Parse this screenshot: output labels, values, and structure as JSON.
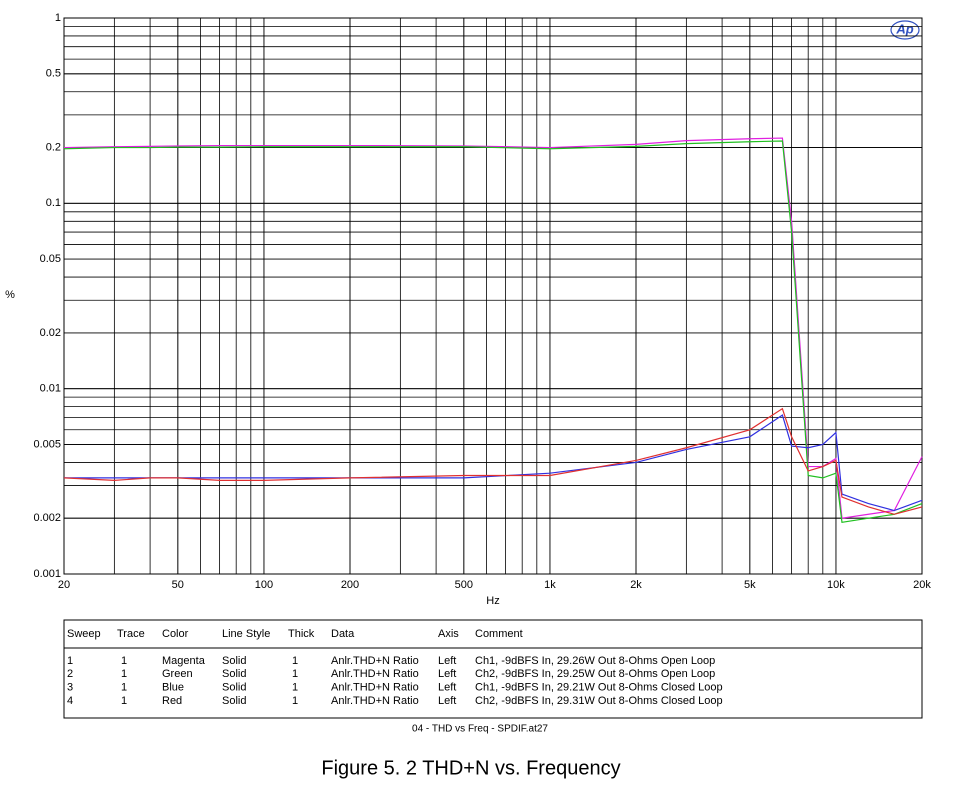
{
  "chart_data": {
    "type": "line",
    "logo": "Ap",
    "xlabel": "Hz",
    "ylabel": "%",
    "xscale": "log",
    "yscale": "log",
    "grid": true,
    "xlim": [
      20,
      20000
    ],
    "xticks": [
      20,
      50,
      100,
      200,
      500,
      {
        "value": 1000,
        "label": "1k"
      },
      {
        "value": 2000,
        "label": "2k"
      },
      {
        "value": 5000,
        "label": "5k"
      },
      {
        "value": 10000,
        "label": "10k"
      },
      {
        "value": 20000,
        "label": "20k"
      }
    ],
    "ylim": [
      0.001,
      1
    ],
    "yticks": [
      1,
      0.5,
      0.2,
      0.1,
      0.05,
      0.02,
      0.01,
      0.005,
      0.002,
      0.001
    ],
    "x": [
      20,
      30,
      40,
      50,
      70,
      100,
      200,
      500,
      1000,
      2000,
      3000,
      5000,
      6500,
      7000,
      8000,
      9000,
      10000,
      10500,
      13000,
      16000,
      20000
    ],
    "series": [
      {
        "name": "Magenta",
        "color": "#e020e0",
        "values": [
          0.2,
          0.202,
          0.203,
          0.204,
          0.205,
          0.205,
          0.205,
          0.204,
          0.2,
          0.208,
          0.218,
          0.223,
          0.225,
          0.08,
          0.0038,
          0.0038,
          0.0042,
          0.002,
          0.0021,
          0.0022,
          0.0043
        ]
      },
      {
        "name": "Green",
        "color": "#20c020",
        "values": [
          0.197,
          0.2,
          0.2,
          0.201,
          0.201,
          0.202,
          0.202,
          0.202,
          0.197,
          0.203,
          0.21,
          0.215,
          0.217,
          0.07,
          0.0034,
          0.0033,
          0.0035,
          0.0019,
          0.002,
          0.0021,
          0.0024
        ]
      },
      {
        "name": "Blue",
        "color": "#3030e0",
        "values": [
          0.0033,
          0.0033,
          0.0033,
          0.0033,
          0.0033,
          0.0033,
          0.0033,
          0.0033,
          0.0035,
          0.004,
          0.0047,
          0.0055,
          0.0072,
          0.0049,
          0.0048,
          0.005,
          0.0058,
          0.0027,
          0.0024,
          0.0022,
          0.0025
        ]
      },
      {
        "name": "Red",
        "color": "#e03030",
        "values": [
          0.0033,
          0.0032,
          0.0033,
          0.0033,
          0.0032,
          0.0032,
          0.0033,
          0.0034,
          0.0034,
          0.0041,
          0.0048,
          0.006,
          0.0078,
          0.0055,
          0.0036,
          0.0038,
          0.0041,
          0.0026,
          0.0023,
          0.0021,
          0.0023
        ]
      }
    ]
  },
  "table": {
    "columns": [
      "Sweep",
      "Trace",
      "Color",
      "Line Style",
      "Thick",
      "Data",
      "Axis",
      "Comment"
    ],
    "rows": [
      [
        "1",
        "1",
        "Magenta",
        "Solid",
        "1",
        "Anlr.THD+N Ratio",
        "Left",
        "Ch1, -9dBFS In, 29.26W Out 8-Ohms Open Loop"
      ],
      [
        "2",
        "1",
        "Green",
        "Solid",
        "1",
        "Anlr.THD+N Ratio",
        "Left",
        "Ch2, -9dBFS In, 29.25W Out 8-Ohms Open Loop"
      ],
      [
        "3",
        "1",
        "Blue",
        "Solid",
        "1",
        "Anlr.THD+N Ratio",
        "Left",
        "Ch1, -9dBFS In, 29.21W Out 8-Ohms Closed Loop"
      ],
      [
        "4",
        "1",
        "Red",
        "Solid",
        "1",
        "Anlr.THD+N Ratio",
        "Left",
        "Ch2, -9dBFS In, 29.31W Out 8-Ohms Closed Loop"
      ]
    ]
  },
  "footer": "04 - THD vs Freq - SPDIF.at27",
  "caption": "Figure 5. 2 THD+N vs. Frequency"
}
